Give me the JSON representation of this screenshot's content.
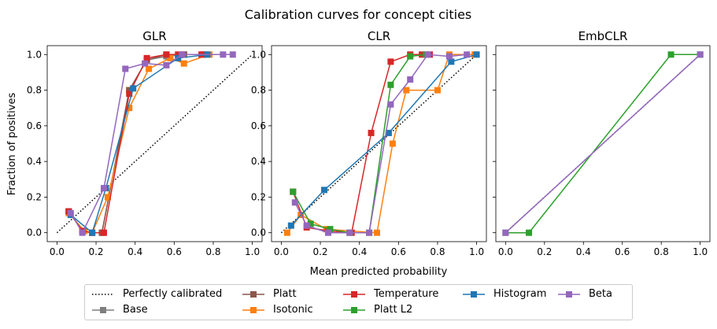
{
  "figure": {
    "suptitle": "Calibration curves for concept cities",
    "xlabel": "Mean predicted probability",
    "ylabel": "Fraction of positives"
  },
  "legend": {
    "placement": "bottom-center",
    "entries": [
      {
        "key": "perfect",
        "label": "Perfectly calibrated"
      },
      {
        "key": "base",
        "label": "Base"
      },
      {
        "key": "platt",
        "label": "Platt"
      },
      {
        "key": "isotonic",
        "label": "Isotonic"
      },
      {
        "key": "temperature",
        "label": "Temperature"
      },
      {
        "key": "plattl2",
        "label": "Platt L2"
      },
      {
        "key": "histogram",
        "label": "Histogram"
      },
      {
        "key": "beta",
        "label": "Beta"
      }
    ]
  },
  "colors": {
    "perfect": "#000000",
    "base": "#7f7f7f",
    "platt": "#8c564b",
    "isotonic": "#ff7f0e",
    "temperature": "#d62728",
    "plattl2": "#2ca02c",
    "histogram": "#1f77b4",
    "beta": "#9467bd"
  },
  "chart_data": [
    {
      "type": "line",
      "title": "GLR",
      "xlim": [
        -0.05,
        1.05
      ],
      "ylim": [
        -0.05,
        1.05
      ],
      "xticks": [
        "0.0",
        "0.2",
        "0.4",
        "0.6",
        "0.8",
        "1.0"
      ],
      "yticks": [
        "0.0",
        "0.2",
        "0.4",
        "0.6",
        "0.8",
        "1.0"
      ],
      "series": [
        {
          "key": "base",
          "x": [
            0.06,
            0.13,
            0.18,
            0.23,
            0.37,
            0.46,
            0.56,
            0.65,
            0.75
          ],
          "y": [
            0.12,
            0.01,
            0.0,
            0.0,
            0.8,
            0.97,
            0.99,
            1.0,
            1.0
          ]
        },
        {
          "key": "platt",
          "x": [
            0.06,
            0.13,
            0.18,
            0.23,
            0.37,
            0.46,
            0.56,
            0.65,
            0.75
          ],
          "y": [
            0.12,
            0.01,
            0.0,
            0.0,
            0.8,
            0.97,
            1.0,
            1.0,
            1.0
          ]
        },
        {
          "key": "isotonic",
          "x": [
            0.06,
            0.14,
            0.18,
            0.26,
            0.37,
            0.47,
            0.58,
            0.65,
            0.78
          ],
          "y": [
            0.11,
            0.01,
            0.0,
            0.2,
            0.7,
            0.92,
            0.98,
            0.95,
            1.0
          ]
        },
        {
          "key": "temperature",
          "x": [
            0.06,
            0.13,
            0.18,
            0.24,
            0.37,
            0.46,
            0.56,
            0.62,
            0.74
          ],
          "y": [
            0.12,
            0.01,
            0.0,
            0.0,
            0.78,
            0.98,
            1.0,
            1.0,
            1.0
          ]
        },
        {
          "key": "histogram",
          "x": [
            0.07,
            0.18,
            0.25,
            0.39,
            0.62,
            0.77
          ],
          "y": [
            0.1,
            0.0,
            0.25,
            0.81,
            0.98,
            1.0
          ]
        },
        {
          "key": "beta",
          "x": [
            0.07,
            0.13,
            0.24,
            0.35,
            0.45,
            0.56,
            0.64,
            0.85,
            0.9
          ],
          "y": [
            0.11,
            0.0,
            0.25,
            0.92,
            0.95,
            0.94,
            1.0,
            1.0,
            1.0
          ]
        }
      ]
    },
    {
      "type": "line",
      "title": "CLR",
      "xlim": [
        -0.05,
        1.05
      ],
      "ylim": [
        -0.05,
        1.05
      ],
      "xticks": [
        "0.0",
        "0.2",
        "0.4",
        "0.6",
        "0.8",
        "1.0"
      ],
      "yticks": [
        "0.0",
        "0.2",
        "0.4",
        "0.6",
        "0.8",
        "1.0"
      ],
      "series": [
        {
          "key": "isotonic",
          "x": [
            0.03,
            0.1,
            0.23,
            0.49,
            0.57,
            0.64,
            0.8,
            0.86,
            0.99
          ],
          "y": [
            0.0,
            0.1,
            0.02,
            0.0,
            0.5,
            0.8,
            0.8,
            1.0,
            1.0
          ]
        },
        {
          "key": "temperature",
          "x": [
            0.06,
            0.13,
            0.24,
            0.36,
            0.46,
            0.56,
            0.66,
            0.72,
            0.76
          ],
          "y": [
            0.23,
            0.03,
            0.01,
            0.0,
            0.56,
            0.96,
            1.0,
            1.0,
            1.0
          ]
        },
        {
          "key": "plattl2",
          "x": [
            0.06,
            0.15,
            0.25,
            0.35,
            0.45,
            0.56,
            0.66,
            0.74
          ],
          "y": [
            0.23,
            0.05,
            0.02,
            0.0,
            0.0,
            0.83,
            0.99,
            1.0
          ]
        },
        {
          "key": "histogram",
          "x": [
            0.05,
            0.22,
            0.55,
            0.87,
            1.0
          ],
          "y": [
            0.04,
            0.24,
            0.56,
            0.96,
            1.0
          ]
        },
        {
          "key": "beta",
          "x": [
            0.07,
            0.13,
            0.24,
            0.35,
            0.45,
            0.56,
            0.66,
            0.75,
            0.86,
            0.95
          ],
          "y": [
            0.17,
            0.04,
            0.0,
            0.0,
            0.0,
            0.72,
            0.86,
            1.0,
            0.99,
            1.0
          ]
        }
      ]
    },
    {
      "type": "line",
      "title": "EmbCLR",
      "xlim": [
        -0.05,
        1.05
      ],
      "ylim": [
        -0.05,
        1.05
      ],
      "xticks": [
        "0.0",
        "0.2",
        "0.4",
        "0.6",
        "0.8",
        "1.0"
      ],
      "yticks": [],
      "series": [
        {
          "key": "plattl2",
          "x": [
            0.0,
            0.12,
            0.85,
            1.0
          ],
          "y": [
            0.0,
            0.0,
            1.0,
            1.0
          ]
        },
        {
          "key": "beta",
          "x": [
            0.0,
            1.0
          ],
          "y": [
            0.0,
            1.0
          ]
        }
      ]
    }
  ]
}
